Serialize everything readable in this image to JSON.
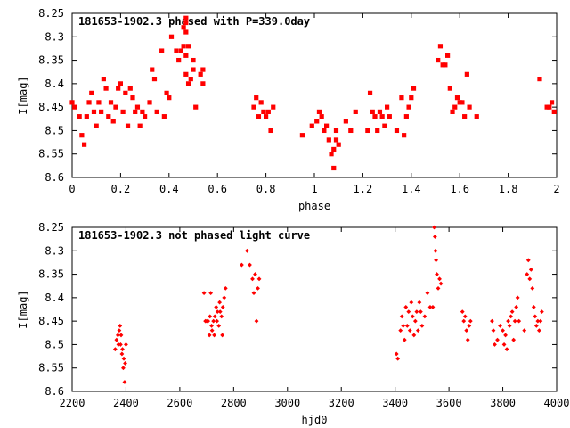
{
  "chart_data": [
    {
      "type": "scatter",
      "title": "181653-1902.3 phased with P=339.0day",
      "xlabel": "phase",
      "ylabel": "I[mag]",
      "xlim": [
        0,
        2
      ],
      "ylim": [
        8.25,
        8.6
      ],
      "y_inverted": true,
      "xticks": [
        0,
        0.2,
        0.4,
        0.6,
        0.8,
        1,
        1.2,
        1.4,
        1.6,
        1.8,
        2
      ],
      "xtick_labels": [
        "0",
        "0.2",
        "0.4",
        "0.6",
        "0.8",
        "1",
        "1.2",
        "1.4",
        "1.6",
        "1.8",
        "2"
      ],
      "yticks": [
        8.25,
        8.3,
        8.35,
        8.4,
        8.45,
        8.5,
        8.55,
        8.6
      ],
      "ytick_labels": [
        "8.25",
        "8.3",
        "8.35",
        "8.4",
        "8.45",
        "8.5",
        "8.55",
        "8.6"
      ],
      "grid": false,
      "marker_color": "#ff0000",
      "x": [
        0.0,
        0.01,
        0.03,
        0.04,
        0.05,
        0.06,
        0.07,
        0.08,
        0.09,
        0.1,
        0.11,
        0.12,
        0.13,
        0.14,
        0.15,
        0.16,
        0.17,
        0.18,
        0.19,
        0.2,
        0.21,
        0.22,
        0.23,
        0.24,
        0.25,
        0.26,
        0.27,
        0.28,
        0.29,
        0.3,
        0.32,
        0.33,
        0.34,
        0.35,
        0.37,
        0.38,
        0.39,
        0.4,
        0.41,
        0.43,
        0.44,
        0.45,
        0.46,
        0.46,
        0.47,
        0.47,
        0.47,
        0.47,
        0.47,
        0.48,
        0.48,
        0.49,
        0.5,
        0.5,
        0.51,
        0.53,
        0.54,
        0.54,
        0.75,
        0.76,
        0.77,
        0.78,
        0.79,
        0.8,
        0.81,
        0.82,
        0.83,
        0.95,
        0.99,
        1.01,
        1.02,
        1.03,
        1.04,
        1.05,
        1.06,
        1.07,
        1.08,
        1.08,
        1.09,
        1.09,
        1.1,
        1.13,
        1.15,
        1.17,
        1.22,
        1.23,
        1.24,
        1.25,
        1.26,
        1.27,
        1.28,
        1.29,
        1.3,
        1.31,
        1.34,
        1.36,
        1.37,
        1.38,
        1.39,
        1.4,
        1.41,
        1.51,
        1.52,
        1.53,
        1.54,
        1.55,
        1.56,
        1.57,
        1.58,
        1.59,
        1.6,
        1.61,
        1.62,
        1.63,
        1.64,
        1.67,
        1.93,
        1.96,
        1.97,
        1.98,
        1.99
      ],
      "y": [
        8.44,
        8.45,
        8.47,
        8.51,
        8.53,
        8.47,
        8.44,
        8.42,
        8.46,
        8.49,
        8.44,
        8.46,
        8.39,
        8.41,
        8.47,
        8.44,
        8.48,
        8.45,
        8.41,
        8.4,
        8.46,
        8.42,
        8.49,
        8.41,
        8.43,
        8.46,
        8.45,
        8.49,
        8.46,
        8.47,
        8.44,
        8.37,
        8.39,
        8.46,
        8.33,
        8.47,
        8.42,
        8.43,
        8.3,
        8.33,
        8.35,
        8.33,
        8.28,
        8.32,
        8.26,
        8.27,
        8.29,
        8.34,
        8.38,
        8.4,
        8.32,
        8.39,
        8.35,
        8.37,
        8.45,
        8.38,
        8.37,
        8.4,
        8.45,
        8.43,
        8.47,
        8.44,
        8.46,
        8.47,
        8.46,
        8.5,
        8.45,
        8.51,
        8.49,
        8.48,
        8.46,
        8.47,
        8.5,
        8.49,
        8.52,
        8.55,
        8.54,
        8.58,
        8.52,
        8.5,
        8.53,
        8.48,
        8.5,
        8.46,
        8.5,
        8.42,
        8.46,
        8.47,
        8.5,
        8.46,
        8.47,
        8.49,
        8.45,
        8.47,
        8.5,
        8.43,
        8.51,
        8.47,
        8.45,
        8.43,
        8.41,
        8.35,
        8.32,
        8.36,
        8.36,
        8.34,
        8.41,
        8.46,
        8.45,
        8.43,
        8.44,
        8.44,
        8.47,
        8.38,
        8.45,
        8.47,
        8.39,
        8.45,
        8.45,
        8.44,
        8.46
      ]
    },
    {
      "type": "scatter",
      "title": "181653-1902.3 not phased light curve",
      "xlabel": "hjd0",
      "ylabel": "I[mag]",
      "xlim": [
        2200,
        4000
      ],
      "ylim": [
        8.25,
        8.6
      ],
      "y_inverted": true,
      "xticks": [
        2200,
        2400,
        2600,
        2800,
        3000,
        3200,
        3400,
        3600,
        3800,
        4000
      ],
      "xtick_labels": [
        "2200",
        "2400",
        "2600",
        "2800",
        "3000",
        "3200",
        "3400",
        "3600",
        "3800",
        "4000"
      ],
      "yticks": [
        8.25,
        8.3,
        8.35,
        8.4,
        8.45,
        8.5,
        8.55,
        8.6
      ],
      "ytick_labels": [
        "8.25",
        "8.3",
        "8.35",
        "8.4",
        "8.45",
        "8.5",
        "8.55",
        "8.6"
      ],
      "grid": false,
      "marker_color": "#ff0000",
      "x": [
        2360,
        2365,
        2370,
        2372,
        2375,
        2378,
        2380,
        2382,
        2385,
        2387,
        2390,
        2392,
        2395,
        2397,
        2400,
        2690,
        2695,
        2700,
        2705,
        2710,
        2712,
        2715,
        2718,
        2720,
        2725,
        2728,
        2730,
        2735,
        2738,
        2740,
        2745,
        2748,
        2750,
        2755,
        2758,
        2760,
        2765,
        2770,
        2830,
        2850,
        2860,
        2870,
        2875,
        2880,
        2885,
        2890,
        2895,
        3405,
        3410,
        3420,
        3425,
        3430,
        3435,
        3440,
        3445,
        3450,
        3455,
        3460,
        3465,
        3470,
        3475,
        3480,
        3485,
        3490,
        3495,
        3500,
        3510,
        3520,
        3530,
        3540,
        3545,
        3548,
        3550,
        3552,
        3555,
        3560,
        3565,
        3570,
        3650,
        3655,
        3660,
        3665,
        3670,
        3675,
        3680,
        3760,
        3765,
        3770,
        3780,
        3790,
        3800,
        3805,
        3810,
        3815,
        3820,
        3825,
        3830,
        3835,
        3840,
        3845,
        3850,
        3855,
        3860,
        3880,
        3890,
        3895,
        3900,
        3905,
        3910,
        3915,
        3920,
        3925,
        3930,
        3935,
        3940,
        3945
      ],
      "y": [
        8.51,
        8.49,
        8.48,
        8.5,
        8.47,
        8.46,
        8.5,
        8.48,
        8.52,
        8.51,
        8.55,
        8.53,
        8.58,
        8.54,
        8.5,
        8.39,
        8.45,
        8.45,
        8.45,
        8.48,
        8.44,
        8.39,
        8.46,
        8.47,
        8.45,
        8.48,
        8.44,
        8.42,
        8.45,
        8.43,
        8.46,
        8.41,
        8.43,
        8.44,
        8.48,
        8.42,
        8.4,
        8.38,
        8.33,
        8.3,
        8.33,
        8.36,
        8.39,
        8.35,
        8.45,
        8.38,
        8.36,
        8.52,
        8.53,
        8.47,
        8.44,
        8.46,
        8.49,
        8.42,
        8.46,
        8.43,
        8.47,
        8.41,
        8.44,
        8.48,
        8.45,
        8.43,
        8.47,
        8.41,
        8.43,
        8.46,
        8.44,
        8.39,
        8.42,
        8.42,
        8.25,
        8.27,
        8.3,
        8.32,
        8.35,
        8.38,
        8.36,
        8.37,
        8.43,
        8.45,
        8.44,
        8.47,
        8.49,
        8.46,
        8.45,
        8.45,
        8.47,
        8.5,
        8.49,
        8.46,
        8.47,
        8.5,
        8.48,
        8.51,
        8.45,
        8.46,
        8.44,
        8.43,
        8.49,
        8.45,
        8.42,
        8.4,
        8.45,
        8.47,
        8.35,
        8.32,
        8.36,
        8.34,
        8.38,
        8.42,
        8.44,
        8.46,
        8.45,
        8.47,
        8.45,
        8.43
      ]
    }
  ]
}
